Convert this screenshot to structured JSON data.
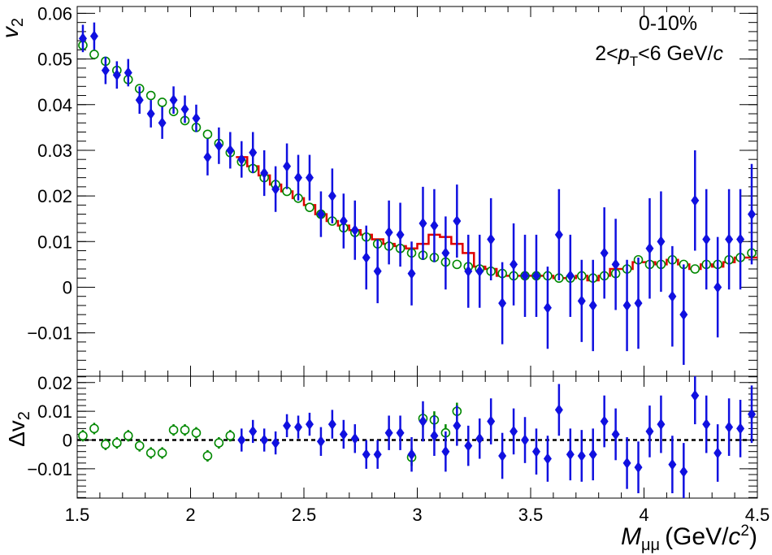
{
  "chart_data": {
    "type": "scatter",
    "annotations": {
      "centrality": "0-10%",
      "pt_range_prefix": "2<",
      "pt_symbol": "p",
      "pt_subscript": "T",
      "pt_range_suffix": "<6 GeV/",
      "pt_unit_italic": "c"
    },
    "top_panel": {
      "ylabel": "v",
      "ylabel_sub": "2",
      "ylim": [
        -0.0195,
        0.0615
      ],
      "yticks": [
        -0.01,
        0,
        0.01,
        0.02,
        0.03,
        0.04,
        0.05,
        0.06
      ],
      "ytick_labels": [
        "−0.01",
        "0",
        "0.01",
        "0.02",
        "0.03",
        "0.04",
        "0.05",
        "0.06"
      ],
      "series": [
        {
          "marker": "filled-diamond",
          "color": "#1010e0",
          "x": [
            1.525,
            1.575,
            1.625,
            1.675,
            1.725,
            1.775,
            1.825,
            1.875,
            1.925,
            1.975,
            2.025,
            2.075,
            2.125,
            2.175,
            2.225,
            2.275,
            2.325,
            2.375,
            2.425,
            2.475,
            2.525,
            2.575,
            2.625,
            2.675,
            2.725,
            2.775,
            2.825,
            2.875,
            2.925,
            2.975,
            3.025,
            3.075,
            3.125,
            3.175,
            3.225,
            3.275,
            3.325,
            3.375,
            3.425,
            3.475,
            3.525,
            3.575,
            3.625,
            3.675,
            3.725,
            3.775,
            3.825,
            3.875,
            3.925,
            3.975,
            4.025,
            4.075,
            4.125,
            4.175,
            4.225,
            4.275,
            4.325,
            4.375,
            4.425,
            4.475
          ],
          "y": [
            0.0545,
            0.055,
            0.0475,
            0.0465,
            0.047,
            0.041,
            0.038,
            0.036,
            0.041,
            0.039,
            0.037,
            0.0285,
            0.031,
            0.03,
            0.028,
            0.0295,
            0.025,
            0.0215,
            0.0265,
            0.024,
            0.024,
            0.016,
            0.02,
            0.0145,
            0.0125,
            0.0065,
            0.0035,
            0.012,
            0.0115,
            0.003,
            0.014,
            0.0135,
            0.0075,
            0.0145,
            0.0035,
            0.0035,
            0.0105,
            -0.0035,
            0.005,
            0.0025,
            0.0025,
            -0.0045,
            0.0115,
            0.0025,
            -0.003,
            -0.004,
            0.0075,
            0.005,
            -0.004,
            -0.0035,
            0.0085,
            0.01,
            -0.002,
            -0.006,
            0.019,
            0.0105,
            0.0,
            0.0105,
            0.0105,
            0.016
          ],
          "err": [
            0.003,
            0.003,
            0.003,
            0.003,
            0.003,
            0.003,
            0.003,
            0.0035,
            0.003,
            0.003,
            0.003,
            0.004,
            0.004,
            0.004,
            0.004,
            0.0045,
            0.005,
            0.005,
            0.005,
            0.005,
            0.005,
            0.005,
            0.006,
            0.006,
            0.0065,
            0.007,
            0.007,
            0.007,
            0.007,
            0.007,
            0.008,
            0.008,
            0.008,
            0.008,
            0.008,
            0.008,
            0.009,
            0.009,
            0.009,
            0.009,
            0.009,
            0.009,
            0.01,
            0.009,
            0.009,
            0.01,
            0.01,
            0.01,
            0.01,
            0.01,
            0.011,
            0.011,
            0.011,
            0.011,
            0.011,
            0.011,
            0.011,
            0.011,
            0.011,
            0.011
          ]
        },
        {
          "marker": "open-circle",
          "color": "#008800",
          "x": [
            1.525,
            1.575,
            1.625,
            1.675,
            1.725,
            1.775,
            1.825,
            1.875,
            1.925,
            1.975,
            2.025,
            2.075,
            2.125,
            2.175,
            2.225,
            2.275,
            2.325,
            2.375,
            2.425,
            2.475,
            2.525,
            2.575,
            2.625,
            2.675,
            2.725,
            2.775,
            2.825,
            2.875,
            2.925,
            2.975,
            3.025,
            3.075,
            3.125,
            3.175,
            3.225,
            3.275,
            3.325,
            3.375,
            3.425,
            3.475,
            3.525,
            3.575,
            3.625,
            3.675,
            3.725,
            3.775,
            3.825,
            3.875,
            3.925,
            3.975,
            4.025,
            4.075,
            4.125,
            4.175,
            4.225,
            4.275,
            4.325,
            4.375,
            4.425,
            4.475
          ],
          "y": [
            0.053,
            0.051,
            0.0495,
            0.0475,
            0.0455,
            0.0435,
            0.042,
            0.0405,
            0.0385,
            0.0365,
            0.035,
            0.0335,
            0.0315,
            0.0295,
            0.0275,
            0.026,
            0.024,
            0.0225,
            0.021,
            0.0195,
            0.0175,
            0.016,
            0.0145,
            0.013,
            0.012,
            0.011,
            0.0095,
            0.009,
            0.0085,
            0.0075,
            0.007,
            0.0065,
            0.0055,
            0.005,
            0.0045,
            0.004,
            0.0035,
            0.003,
            0.0025,
            0.0025,
            0.0025,
            0.0025,
            0.002,
            0.002,
            0.0025,
            0.002,
            0.0025,
            0.003,
            0.004,
            0.006,
            0.005,
            0.005,
            0.006,
            0.005,
            0.004,
            0.005,
            0.005,
            0.006,
            0.0065,
            0.0075
          ]
        },
        {
          "type": "step",
          "color": "#e00000",
          "x_edges": [
            2.2,
            2.25,
            2.3,
            2.35,
            2.4,
            2.45,
            2.5,
            2.55,
            2.6,
            2.65,
            2.7,
            2.75,
            2.8,
            2.85,
            2.9,
            2.95,
            3.0,
            3.05,
            3.1,
            3.15,
            3.2,
            3.25,
            3.3,
            3.35,
            3.4,
            3.45,
            3.5,
            3.55,
            3.6,
            3.65,
            3.7,
            3.75,
            3.8,
            3.85,
            3.9,
            3.95,
            4.0,
            4.05,
            4.1,
            4.15,
            4.2,
            4.25,
            4.3,
            4.35,
            4.4,
            4.45,
            4.5
          ],
          "y": [
            0.0285,
            0.0265,
            0.0245,
            0.0225,
            0.021,
            0.0195,
            0.018,
            0.016,
            0.0145,
            0.0135,
            0.0125,
            0.0115,
            0.0105,
            0.0095,
            0.009,
            0.0085,
            0.0095,
            0.0115,
            0.011,
            0.0095,
            0.0075,
            0.0045,
            0.004,
            0.0025,
            0.0025,
            0.0025,
            0.0025,
            0.0025,
            0.002,
            0.002,
            0.0025,
            0.0015,
            0.0025,
            0.004,
            0.004,
            0.0055,
            0.0055,
            0.005,
            0.006,
            0.005,
            0.004,
            0.005,
            0.0045,
            0.0055,
            0.0065,
            0.0065
          ]
        }
      ]
    },
    "bottom_panel": {
      "ylabel": "Δv",
      "ylabel_sub": "2",
      "ylim": [
        -0.0202,
        0.0222
      ],
      "yticks": [
        -0.01,
        0,
        0.01,
        0.02
      ],
      "ytick_labels": [
        "−0.01",
        "0",
        "0.01",
        "0.02"
      ],
      "series": [
        {
          "marker": "filled-diamond",
          "color": "#1010e0",
          "x": [
            2.225,
            2.275,
            2.325,
            2.375,
            2.425,
            2.475,
            2.525,
            2.575,
            2.625,
            2.675,
            2.725,
            2.775,
            2.825,
            2.875,
            2.925,
            2.975,
            3.025,
            3.075,
            3.125,
            3.175,
            3.225,
            3.275,
            3.325,
            3.375,
            3.425,
            3.475,
            3.525,
            3.575,
            3.625,
            3.675,
            3.725,
            3.775,
            3.825,
            3.875,
            3.925,
            3.975,
            4.025,
            4.075,
            4.125,
            4.175,
            4.225,
            4.275,
            4.325,
            4.375,
            4.425,
            4.475
          ],
          "y": [
            0.0,
            0.003,
            0.0,
            -0.001,
            0.005,
            0.0045,
            0.0055,
            -0.0005,
            0.0055,
            0.002,
            0.0005,
            -0.005,
            -0.005,
            0.0025,
            0.0025,
            -0.005,
            0.0065,
            0.0015,
            -0.004,
            0.005,
            -0.002,
            0.0005,
            0.0065,
            -0.0055,
            0.003,
            0.0,
            -0.004,
            -0.0065,
            0.0105,
            -0.005,
            -0.0055,
            -0.005,
            0.0065,
            0.002,
            -0.008,
            -0.0095,
            0.003,
            0.0055,
            -0.0085,
            -0.011,
            0.0155,
            0.0055,
            -0.0045,
            0.0045,
            0.004,
            0.009
          ],
          "err": [
            0.004,
            0.004,
            0.004,
            0.004,
            0.004,
            0.004,
            0.004,
            0.005,
            0.005,
            0.005,
            0.005,
            0.005,
            0.005,
            0.006,
            0.006,
            0.006,
            0.007,
            0.007,
            0.007,
            0.007,
            0.007,
            0.007,
            0.008,
            0.008,
            0.008,
            0.008,
            0.008,
            0.008,
            0.009,
            0.009,
            0.009,
            0.009,
            0.009,
            0.009,
            0.009,
            0.009,
            0.009,
            0.01,
            0.01,
            0.01,
            0.01,
            0.01,
            0.01,
            0.01,
            0.01,
            0.01
          ]
        },
        {
          "marker": "open-circle",
          "color": "#008800",
          "x": [
            1.525,
            1.575,
            1.625,
            1.675,
            1.725,
            1.775,
            1.825,
            1.875,
            1.925,
            1.975,
            2.025,
            2.075,
            2.125,
            2.175,
            2.975,
            3.025,
            3.075,
            3.125,
            3.175
          ],
          "y": [
            0.0015,
            0.004,
            -0.0015,
            -0.001,
            0.0015,
            -0.002,
            -0.0045,
            -0.0045,
            0.0035,
            0.0035,
            0.0025,
            -0.0055,
            -0.001,
            0.0015,
            -0.006,
            0.0075,
            0.007,
            0.0025,
            0.01
          ],
          "err": [
            0.002,
            0.002,
            0.002,
            0.002,
            0.002,
            0.002,
            0.002,
            0.002,
            0.002,
            0.002,
            0.002,
            0.002,
            0.002,
            0.002,
            0.003,
            0.003,
            0.003,
            0.003,
            0.003
          ]
        }
      ]
    },
    "x_axis": {
      "label_main": "M",
      "label_sub": "μμ",
      "label_unit_prefix": "(GeV/",
      "label_unit_c": "c",
      "label_unit_exp": "2",
      "label_unit_suffix": ")",
      "xlim": [
        1.5,
        4.5
      ],
      "xticks": [
        1.5,
        2,
        2.5,
        3,
        3.5,
        4,
        4.5
      ],
      "xtick_labels": [
        "1.5",
        "2",
        "2.5",
        "3",
        "3.5",
        "4",
        "4.5"
      ]
    },
    "reference_line": {
      "y": 0,
      "style": "dashed"
    }
  }
}
